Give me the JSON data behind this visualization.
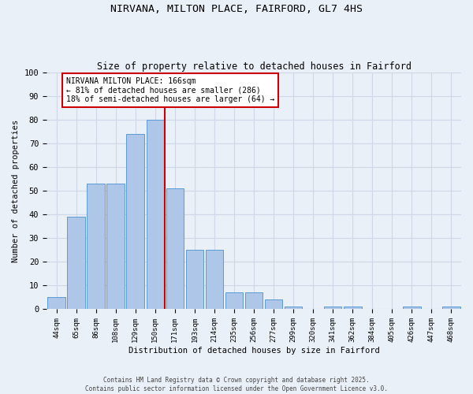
{
  "title1": "NIRVANA, MILTON PLACE, FAIRFORD, GL7 4HS",
  "title2": "Size of property relative to detached houses in Fairford",
  "xlabel": "Distribution of detached houses by size in Fairford",
  "ylabel": "Number of detached properties",
  "categories": [
    "44sqm",
    "65sqm",
    "86sqm",
    "108sqm",
    "129sqm",
    "150sqm",
    "171sqm",
    "193sqm",
    "214sqm",
    "235sqm",
    "256sqm",
    "277sqm",
    "299sqm",
    "320sqm",
    "341sqm",
    "362sqm",
    "384sqm",
    "405sqm",
    "426sqm",
    "447sqm",
    "468sqm"
  ],
  "values": [
    5,
    39,
    53,
    53,
    74,
    80,
    51,
    25,
    25,
    7,
    7,
    4,
    1,
    0,
    1,
    1,
    0,
    0,
    1,
    0,
    1
  ],
  "bar_color": "#aec6e8",
  "bar_edge_color": "#5b9bd5",
  "annotation_text": "NIRVANA MILTON PLACE: 166sqm\n← 81% of detached houses are smaller (286)\n18% of semi-detached houses are larger (64) →",
  "annotation_box_color": "#ffffff",
  "annotation_box_edge_color": "#cc0000",
  "vline_color": "#cc0000",
  "vline_x_index": 5.5,
  "ylim": [
    0,
    100
  ],
  "yticks": [
    0,
    10,
    20,
    30,
    40,
    50,
    60,
    70,
    80,
    90,
    100
  ],
  "grid_color": "#d0d8e8",
  "bg_color": "#eaf0f8",
  "footer1": "Contains HM Land Registry data © Crown copyright and database right 2025.",
  "footer2": "Contains public sector information licensed under the Open Government Licence v3.0."
}
